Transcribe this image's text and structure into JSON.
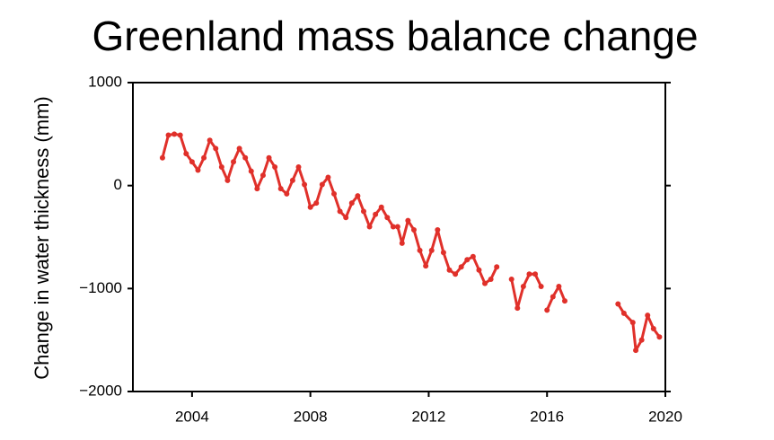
{
  "chart_data": {
    "type": "line",
    "title": "Greenland mass balance change",
    "ylabel": "Change in water thickness (mm)",
    "xlim": [
      2002,
      2020
    ],
    "xticks": [
      2004,
      2008,
      2012,
      2016,
      2020
    ],
    "ylim": [
      -2000,
      1000
    ],
    "yticks": [
      {
        "value": -2000,
        "label": "−2000"
      },
      {
        "value": -1000,
        "label": "−1000"
      },
      0,
      1000
    ],
    "series": [
      {
        "color": "#e0302a",
        "x": [
          2003.0,
          2003.2,
          2003.4,
          2003.6,
          2003.8,
          2004.0,
          2004.2,
          2004.4,
          2004.6,
          2004.8,
          2005.0,
          2005.2,
          2005.4,
          2005.6,
          2005.8,
          2006.0,
          2006.2,
          2006.4,
          2006.6,
          2006.8,
          2007.0,
          2007.2,
          2007.4,
          2007.6,
          2007.8,
          2008.0,
          2008.2,
          2008.4,
          2008.6,
          2008.8,
          2009.0,
          2009.2,
          2009.4,
          2009.6,
          2009.8,
          2010.0,
          2010.2,
          2010.4,
          2010.6,
          2010.8,
          null,
          2010.95,
          2011.1,
          2011.3,
          2011.5,
          2011.7,
          2011.9,
          2012.1,
          2012.3,
          2012.5,
          2012.7,
          2012.9,
          2013.1,
          2013.3,
          2013.5,
          2013.7,
          2013.9,
          2014.1,
          2014.3,
          null,
          2014.8,
          2015.0,
          2015.2,
          2015.4,
          2015.6,
          2015.8,
          null,
          2016.0,
          2016.2,
          2016.4,
          2016.6,
          null,
          2018.4,
          2018.6,
          2018.9,
          2019.0,
          2019.2,
          2019.4,
          2019.6,
          2019.8
        ],
        "values": [
          270,
          490,
          500,
          490,
          310,
          230,
          150,
          270,
          440,
          360,
          180,
          50,
          230,
          360,
          270,
          140,
          -30,
          100,
          270,
          180,
          -30,
          -80,
          50,
          180,
          10,
          -210,
          -170,
          10,
          80,
          -80,
          -250,
          -310,
          -170,
          -100,
          -250,
          -400,
          -280,
          -210,
          -310,
          -400,
          null,
          -400,
          -560,
          -340,
          -430,
          -630,
          -780,
          -630,
          -430,
          -650,
          -820,
          -860,
          -790,
          -720,
          -690,
          -820,
          -950,
          -910,
          -790,
          null,
          -910,
          -1190,
          -980,
          -860,
          -860,
          -980,
          null,
          -1210,
          -1080,
          -980,
          -1120,
          null,
          -1150,
          -1240,
          -1330,
          -1600,
          -1500,
          -1260,
          -1390,
          -1470
        ]
      }
    ]
  }
}
